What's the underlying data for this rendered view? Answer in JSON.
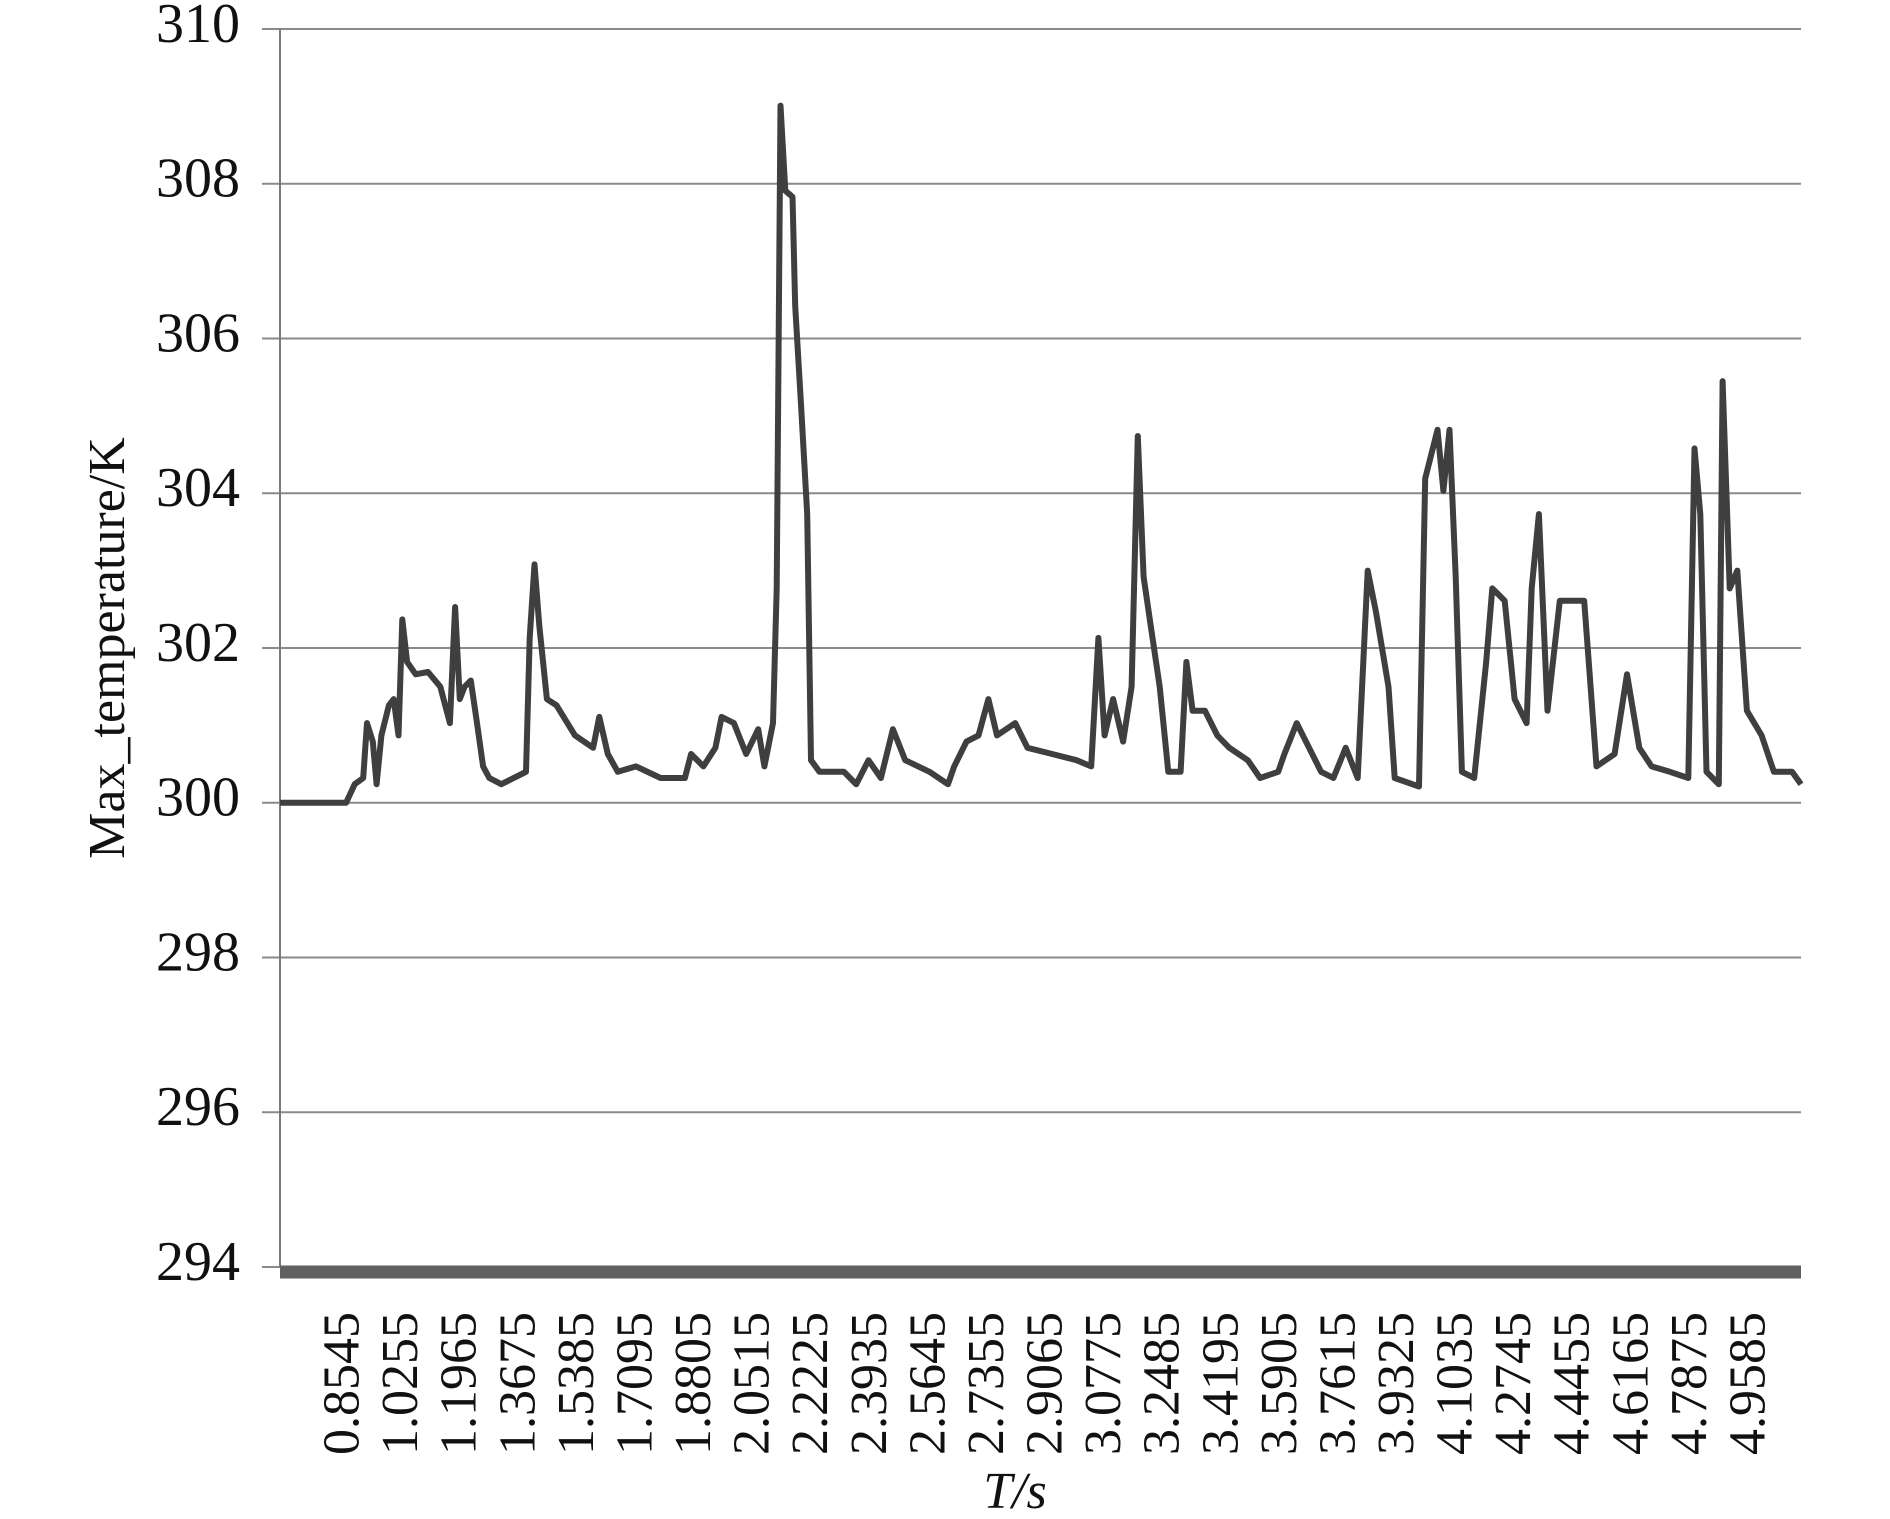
{
  "chart_data": {
    "type": "line",
    "y_label": "Max_temperature/K",
    "x_label": "T/s",
    "color": "#3f3f3f",
    "grid": true,
    "xlim": [
      0.66,
      5.1
    ],
    "ylim": [
      294,
      310
    ],
    "yticks": [
      294,
      296,
      298,
      300,
      302,
      304,
      306,
      308,
      310
    ],
    "xticks": [
      0.8545,
      1.0255,
      1.1965,
      1.3675,
      1.5385,
      1.7095,
      1.8805,
      2.0515,
      2.2225,
      2.3935,
      2.5645,
      2.7355,
      2.9065,
      3.0775,
      3.2485,
      3.4195,
      3.5905,
      3.7615,
      3.9325,
      4.1035,
      4.2745,
      4.4455,
      4.6165,
      4.7875,
      4.9585
    ],
    "x": [
      0.66,
      0.853,
      0.878,
      0.903,
      0.914,
      0.931,
      0.942,
      0.956,
      0.978,
      0.992,
      1.006,
      1.017,
      1.031,
      1.056,
      1.092,
      1.128,
      1.156,
      1.171,
      1.185,
      1.199,
      1.217,
      1.235,
      1.253,
      1.271,
      1.306,
      1.378,
      1.389,
      1.403,
      1.417,
      1.439,
      1.467,
      1.521,
      1.574,
      1.592,
      1.617,
      1.646,
      1.699,
      1.771,
      1.842,
      1.86,
      1.896,
      1.931,
      1.949,
      1.985,
      2.021,
      2.056,
      2.074,
      2.099,
      2.11,
      2.121,
      2.135,
      2.156,
      2.164,
      2.181,
      2.199,
      2.21,
      2.235,
      2.306,
      2.342,
      2.378,
      2.414,
      2.449,
      2.485,
      2.556,
      2.61,
      2.628,
      2.664,
      2.699,
      2.728,
      2.753,
      2.806,
      2.842,
      2.914,
      2.985,
      3.028,
      3.049,
      3.067,
      3.092,
      3.121,
      3.146,
      3.164,
      3.181,
      3.199,
      3.228,
      3.253,
      3.289,
      3.306,
      3.324,
      3.36,
      3.396,
      3.431,
      3.485,
      3.521,
      3.574,
      3.592,
      3.628,
      3.664,
      3.699,
      3.735,
      3.771,
      3.806,
      3.835,
      3.86,
      3.896,
      3.914,
      3.985,
      4.003,
      4.039,
      4.056,
      4.074,
      4.092,
      4.11,
      4.146,
      4.181,
      4.199,
      4.235,
      4.264,
      4.299,
      4.314,
      4.335,
      4.36,
      4.396,
      4.449,
      4.467,
      4.503,
      4.556,
      4.592,
      4.628,
      4.664,
      4.717,
      4.771,
      4.789,
      4.806,
      4.824,
      4.86,
      4.871,
      4.892,
      4.914,
      4.942,
      4.985,
      5.021,
      5.074,
      5.1
    ],
    "values": [
      300,
      300,
      300.24,
      300.32,
      301.03,
      300.79,
      300.24,
      300.87,
      301.26,
      301.34,
      300.87,
      302.37,
      301.82,
      301.66,
      301.69,
      301.5,
      301.03,
      302.53,
      301.34,
      301.5,
      301.58,
      301.03,
      300.47,
      300.32,
      300.24,
      300.4,
      302.13,
      303.08,
      302.29,
      301.34,
      301.26,
      300.87,
      300.71,
      301.11,
      300.63,
      300.4,
      300.47,
      300.32,
      300.32,
      300.63,
      300.47,
      300.71,
      301.11,
      301.03,
      300.63,
      300.95,
      300.47,
      301.03,
      302.77,
      309.01,
      307.91,
      307.83,
      306.42,
      305.15,
      303.73,
      300.55,
      300.4,
      300.4,
      300.24,
      300.55,
      300.32,
      300.95,
      300.55,
      300.4,
      300.24,
      300.47,
      300.79,
      300.87,
      301.34,
      300.87,
      301.03,
      300.71,
      300.63,
      300.55,
      300.47,
      302.13,
      300.87,
      301.34,
      300.79,
      301.5,
      304.74,
      302.92,
      302.37,
      301.5,
      300.4,
      300.4,
      301.82,
      301.19,
      301.19,
      300.87,
      300.71,
      300.55,
      300.32,
      300.4,
      300.63,
      301.03,
      300.71,
      300.4,
      300.32,
      300.71,
      300.32,
      303.0,
      302.45,
      301.5,
      300.32,
      300.21,
      304.19,
      304.82,
      304.03,
      304.82,
      302.92,
      300.4,
      300.32,
      301.82,
      302.77,
      302.61,
      301.34,
      301.03,
      302.77,
      303.73,
      301.19,
      302.61,
      302.61,
      302.61,
      300.47,
      300.63,
      301.66,
      300.71,
      300.47,
      300.4,
      300.32,
      304.58,
      303.73,
      300.4,
      300.24,
      305.45,
      302.77,
      303.0,
      301.19,
      300.87,
      300.4,
      300.4,
      300.24
    ]
  }
}
